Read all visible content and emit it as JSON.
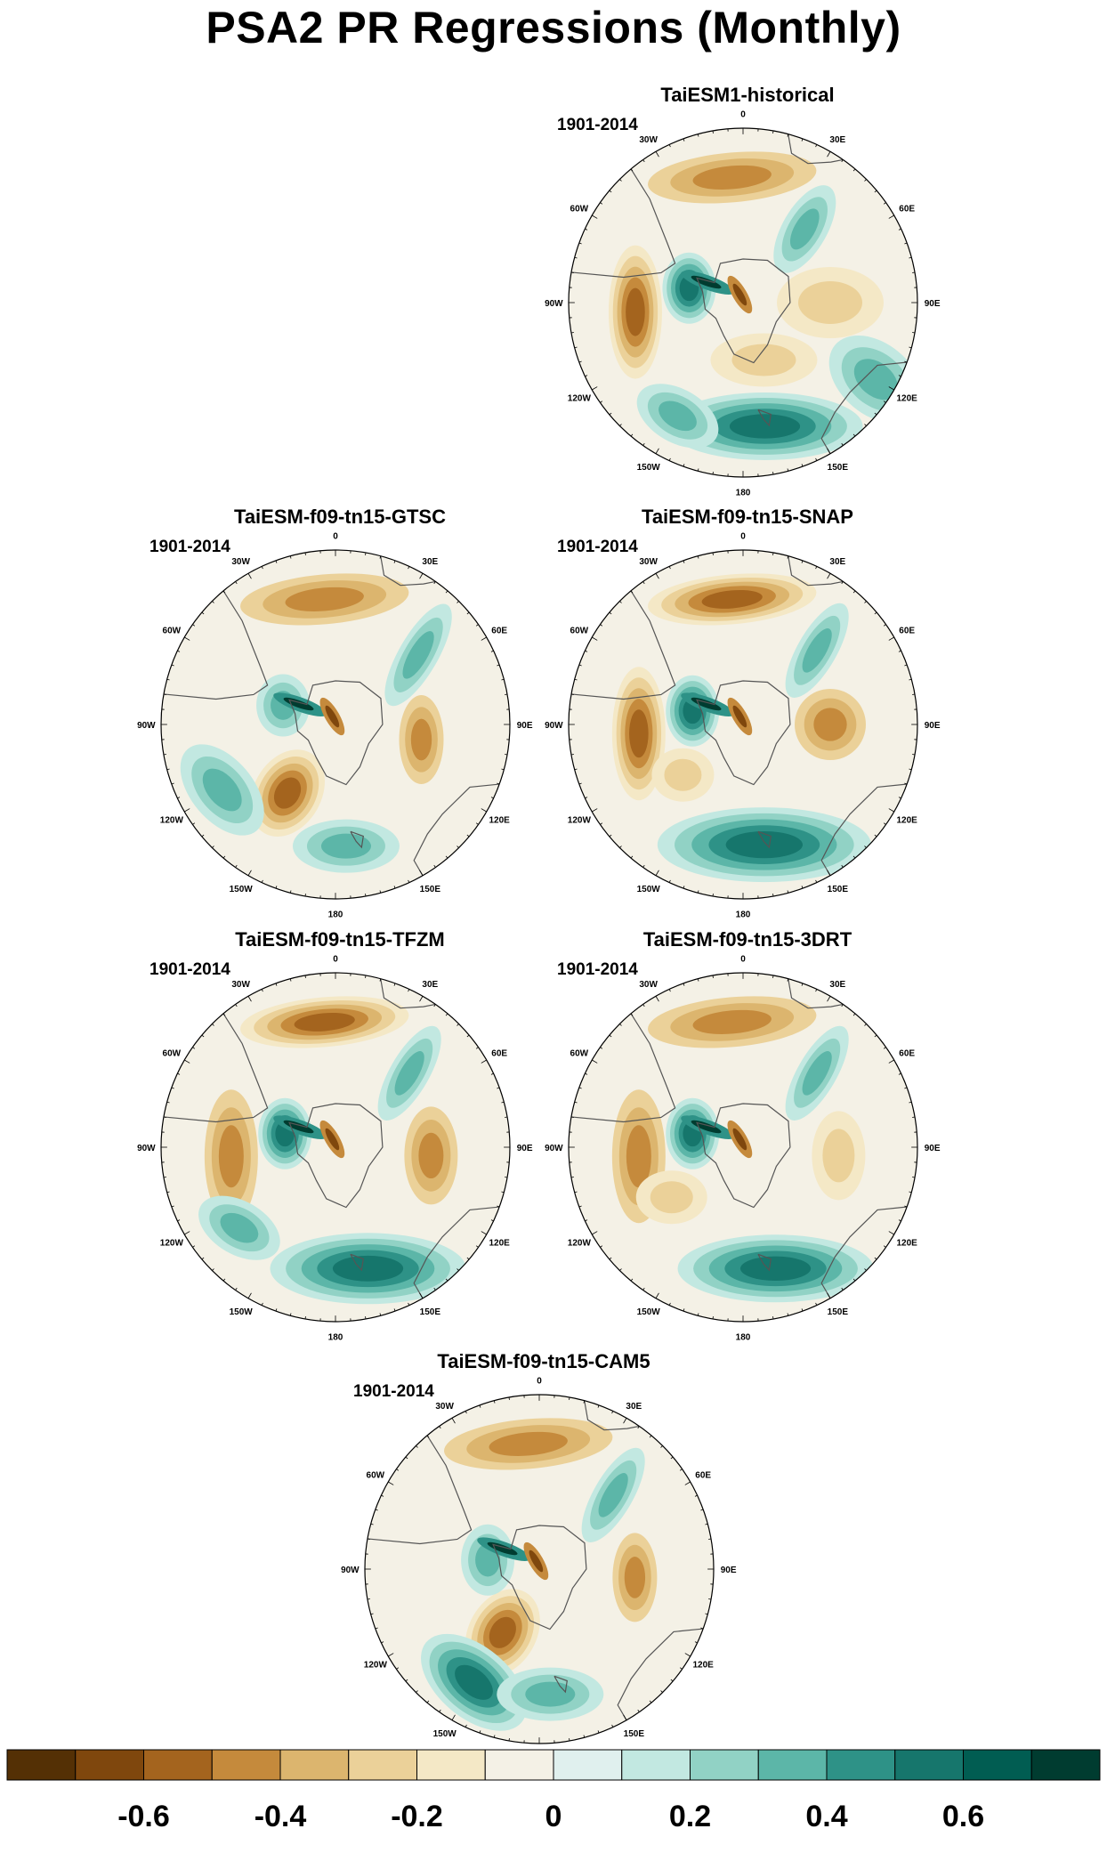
{
  "title": "PSA2 PR Regressions (Monthly)",
  "panels": [
    {
      "name": "TaiESM1-historical",
      "period": "1901-2014",
      "variant": 0
    },
    {
      "name": "TaiESM-f09-tn15-GTSC",
      "period": "1901-2014",
      "variant": 1
    },
    {
      "name": "TaiESM-f09-tn15-SNAP",
      "period": "1901-2014",
      "variant": 2
    },
    {
      "name": "TaiESM-f09-tn15-TFZM",
      "period": "1901-2014",
      "variant": 3
    },
    {
      "name": "TaiESM-f09-tn15-3DRT",
      "period": "1901-2014",
      "variant": 4
    },
    {
      "name": "TaiESM-f09-tn15-CAM5",
      "period": "1901-2014",
      "variant": 5
    }
  ],
  "longitude_labels": {
    "0": "0",
    "30E": "30E",
    "60E": "60E",
    "90E": "90E",
    "120E": "120E",
    "150E": "150E",
    "180": "180",
    "150W": "150W",
    "120W": "120W",
    "90W": "90W",
    "60W": "60W",
    "30W": "30W"
  },
  "colorbar": {
    "colors": [
      "#543005",
      "#7f470d",
      "#a4641e",
      "#c58a3c",
      "#dcb56e",
      "#ebd199",
      "#f4e8c6",
      "#f4f1e6",
      "#e0f0ee",
      "#c2e8e1",
      "#91d2c5",
      "#5cb6a8",
      "#2e9287",
      "#16766c",
      "#015d52",
      "#003c30"
    ],
    "tick_labels": [
      "-0.6",
      "-0.4",
      "-0.2",
      "0",
      "0.2",
      "0.4",
      "0.6"
    ],
    "tick_values": [
      -0.6,
      -0.4,
      -0.2,
      0,
      0.2,
      0.4,
      0.6
    ]
  }
}
